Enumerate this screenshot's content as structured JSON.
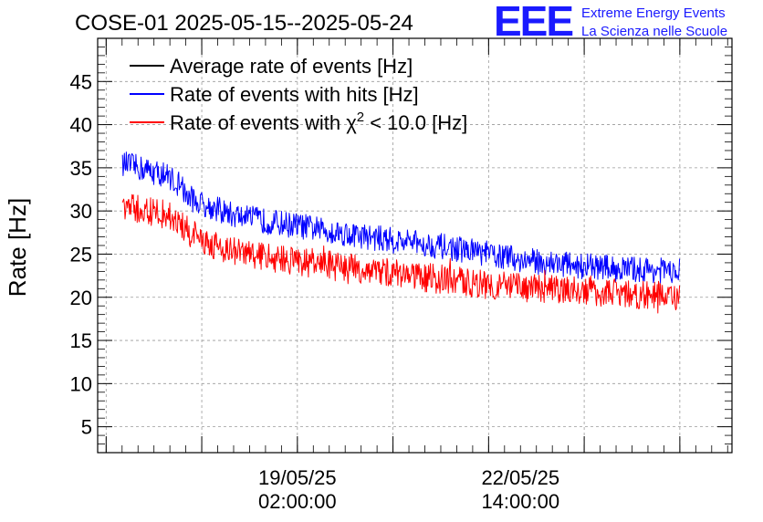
{
  "chart_data": {
    "type": "line",
    "title": "COSE-01 2025-05-15--2025-05-24",
    "xlabel": "",
    "ylabel": "Rate [Hz]",
    "ylim": [
      2,
      50
    ],
    "yticks": [
      5,
      10,
      15,
      20,
      25,
      30,
      35,
      40,
      45
    ],
    "x_tick_labels": [
      {
        "date": "19/05/25",
        "time": "02:00:00",
        "x": "2025-05-19T02:00:00"
      },
      {
        "date": "22/05/25",
        "time": "14:00:00",
        "x": "2025-05-22T14:00:00"
      }
    ],
    "xlim": [
      "2025-05-15T22:48:00",
      "2025-05-25T21:38:00"
    ],
    "grid": true,
    "legend_position": "top-left",
    "series": [
      {
        "name": "Average rate of events [Hz]",
        "color": "#000000",
        "x": [],
        "y": []
      },
      {
        "name": "Rate of events with hits [Hz]",
        "color": "#0000ff",
        "x": [
          "2025-05-17T02:00:00",
          "2025-05-17T08:00:00",
          "2025-05-17T14:00:00",
          "2025-05-18T02:00:00",
          "2025-05-18T14:00:00",
          "2025-05-19T02:00:00",
          "2025-05-19T14:00:00",
          "2025-05-20T02:00:00",
          "2025-05-20T14:00:00",
          "2025-05-21T02:00:00",
          "2025-05-21T14:00:00",
          "2025-05-22T02:00:00",
          "2025-05-22T14:00:00",
          "2025-05-23T02:00:00",
          "2025-05-23T14:00:00",
          "2025-05-24T02:00:00",
          "2025-05-24T14:00:00",
          "2025-05-25T02:00:00"
        ],
        "y": [
          34.0,
          31.8,
          30.8,
          29.5,
          28.8,
          28.3,
          27.7,
          27.1,
          26.6,
          26.2,
          25.6,
          25.0,
          24.3,
          24.0,
          23.6,
          23.3,
          23.2,
          23.0
        ]
      },
      {
        "name": "Rate of events with χ² < 10.0 [Hz]",
        "color": "#ff0000",
        "x": [
          "2025-05-17T02:00:00",
          "2025-05-17T08:00:00",
          "2025-05-17T14:00:00",
          "2025-05-18T02:00:00",
          "2025-05-18T14:00:00",
          "2025-05-19T02:00:00",
          "2025-05-19T14:00:00",
          "2025-05-20T02:00:00",
          "2025-05-20T14:00:00",
          "2025-05-21T02:00:00",
          "2025-05-21T14:00:00",
          "2025-05-22T02:00:00",
          "2025-05-22T14:00:00",
          "2025-05-23T02:00:00",
          "2025-05-23T14:00:00",
          "2025-05-24T02:00:00",
          "2025-05-24T14:00:00",
          "2025-05-25T02:00:00"
        ],
        "y": [
          29.5,
          27.8,
          26.6,
          25.3,
          24.7,
          24.2,
          23.7,
          23.2,
          22.8,
          22.3,
          21.9,
          21.5,
          21.1,
          20.9,
          20.7,
          20.5,
          20.3,
          20.0
        ]
      }
    ]
  },
  "logo": {
    "mark": "EEE",
    "line1": "Extreme Energy Events",
    "line2": "La Scienza nelle Scuole"
  }
}
